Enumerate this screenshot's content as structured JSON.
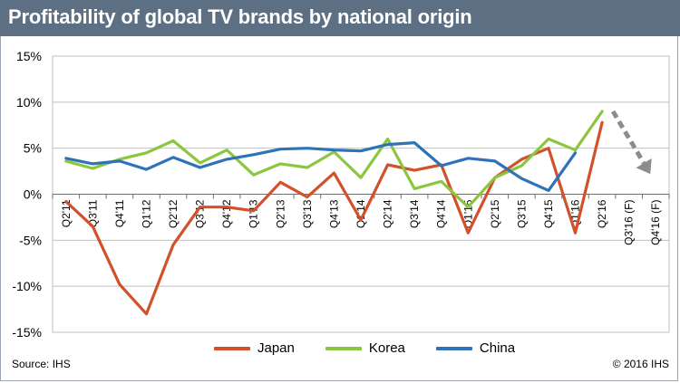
{
  "header": {
    "title": "Profitability of global TV brands by national origin"
  },
  "footer": {
    "source": "Source: IHS",
    "copyright": "© 2016 IHS"
  },
  "colors": {
    "header_bg": "#5d6f83",
    "japan": "#d2502a",
    "korea": "#8cc63e",
    "china": "#2e72b8",
    "arrow": "#8c8c8c",
    "grid": "#b9c2cc"
  },
  "chart_data": {
    "type": "line",
    "title": "Profitability of global TV brands by national origin",
    "xlabel": "",
    "ylabel": "",
    "ylim": [
      -15,
      15
    ],
    "y_ticks": [
      "15%",
      "10%",
      "5%",
      "0%",
      "-5%",
      "-10%",
      "-15%"
    ],
    "y_tick_values": [
      15,
      10,
      5,
      0,
      -5,
      -10,
      -15
    ],
    "grid": true,
    "legend_position": "bottom",
    "categories": [
      "Q2'11",
      "Q3'11",
      "Q4'11",
      "Q1'12",
      "Q2'12",
      "Q3'12",
      "Q4'12",
      "Q1'13",
      "Q2'13",
      "Q3'13",
      "Q4'13",
      "Q1'14",
      "Q2'14",
      "Q3'14",
      "Q4'14",
      "Q1'15",
      "Q2'15",
      "Q3'15",
      "Q4'15",
      "Q1'16",
      "Q2'16",
      "Q3'16 (F)",
      "Q4'16 (F)"
    ],
    "series": [
      {
        "name": "Japan",
        "color": "#d2502a",
        "values": [
          -0.8,
          -3.5,
          -9.8,
          -13.0,
          -5.5,
          -1.4,
          -1.4,
          -1.8,
          1.3,
          -0.3,
          2.3,
          -2.8,
          3.2,
          2.6,
          3.2,
          -4.2,
          1.8,
          3.8,
          5.0,
          -4.2,
          7.8,
          null,
          null
        ]
      },
      {
        "name": "Korea",
        "color": "#8cc63e",
        "values": [
          3.6,
          2.8,
          3.8,
          4.5,
          5.8,
          3.4,
          4.8,
          2.1,
          3.3,
          2.9,
          4.6,
          1.8,
          6.0,
          0.6,
          1.4,
          -1.4,
          1.8,
          3.1,
          6.0,
          4.8,
          9.0,
          null,
          null
        ]
      },
      {
        "name": "China",
        "color": "#2e72b8",
        "values": [
          3.9,
          3.3,
          3.6,
          2.7,
          4.0,
          2.9,
          3.8,
          4.3,
          4.9,
          5.0,
          4.8,
          4.7,
          5.4,
          5.6,
          3.1,
          3.9,
          3.6,
          1.7,
          0.4,
          4.5,
          null,
          null,
          null
        ]
      }
    ],
    "forecast_arrow": {
      "from_category": "Q2'16",
      "from_value": 9.0,
      "to_category": "Q4'16 (F)",
      "to_value": 2.2,
      "style": "dashed"
    }
  }
}
